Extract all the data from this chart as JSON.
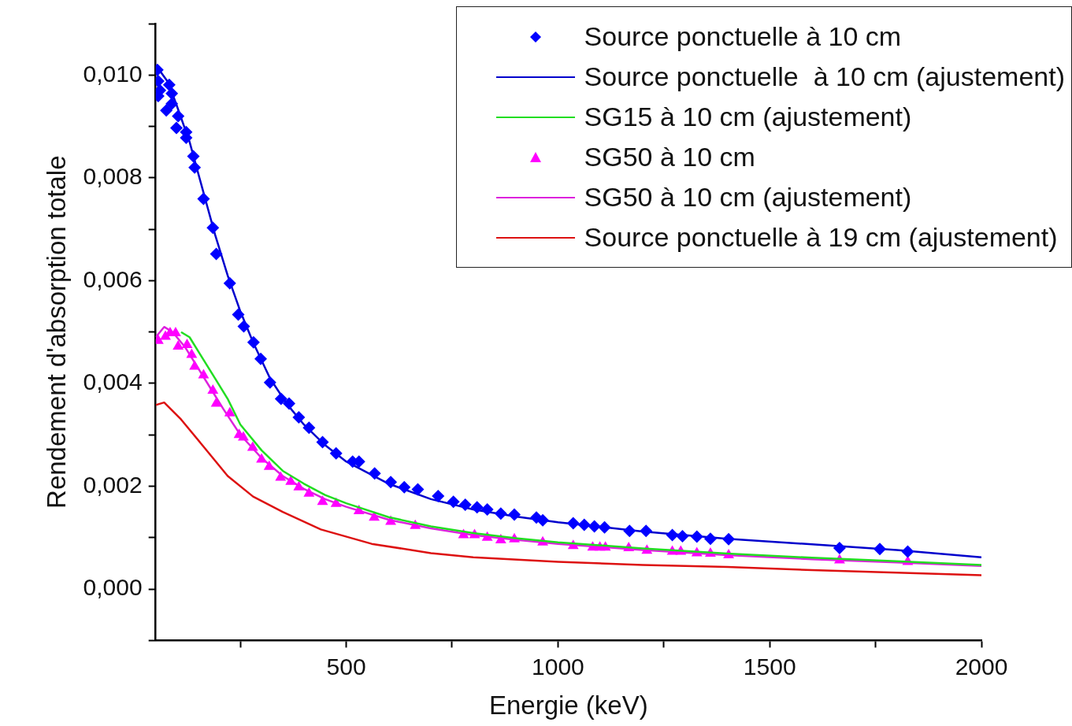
{
  "chart_data": {
    "type": "scatter",
    "xlabel": "Energie (keV)",
    "ylabel": "Rendement d'absorption totale",
    "xlim": [
      50,
      2000
    ],
    "ylim": [
      -0.001,
      0.011
    ],
    "xticks": [
      {
        "value": 250,
        "label": null
      },
      {
        "value": 500,
        "label": "500"
      },
      {
        "value": 750,
        "label": null
      },
      {
        "value": 1000,
        "label": "1000"
      },
      {
        "value": 1250,
        "label": null
      },
      {
        "value": 1500,
        "label": "1500"
      },
      {
        "value": 1750,
        "label": null
      },
      {
        "value": 2000,
        "label": "2000"
      }
    ],
    "yticks": [
      {
        "value": -0.001,
        "label": null
      },
      {
        "value": 0,
        "label": "0,000"
      },
      {
        "value": 0.001,
        "label": null
      },
      {
        "value": 0.002,
        "label": "0,002"
      },
      {
        "value": 0.003,
        "label": null
      },
      {
        "value": 0.004,
        "label": "0,004"
      },
      {
        "value": 0.005,
        "label": null
      },
      {
        "value": 0.006,
        "label": "0,006"
      },
      {
        "value": 0.007,
        "label": null
      },
      {
        "value": 0.008,
        "label": "0,008"
      },
      {
        "value": 0.009,
        "label": null
      },
      {
        "value": 0.01,
        "label": "0,010"
      },
      {
        "value": 0.011,
        "label": null
      }
    ],
    "grid": false,
    "legend": "top right",
    "series": [
      {
        "name": "Source ponctuelle à 10 cm",
        "marker": "diamond",
        "color": "#0000ff",
        "x": [
          54,
          56,
          60,
          56,
          82,
          88,
          75,
          88,
          103,
          99,
          122,
          122,
          139,
          142,
          163,
          185,
          193,
          225,
          245,
          258,
          281,
          298,
          320,
          346,
          365,
          388,
          412,
          444,
          476,
          515,
          530,
          567,
          605,
          637,
          669,
          717,
          753,
          781,
          809,
          833,
          865,
          897,
          949,
          964,
          1036,
          1062,
          1086,
          1110,
          1169,
          1208,
          1270,
          1294,
          1328,
          1360,
          1403,
          1665,
          1760,
          1826
        ],
        "values": [
          0.0101,
          0.00988,
          0.0097,
          0.00959,
          0.00981,
          0.00964,
          0.00931,
          0.00944,
          0.0092,
          0.00897,
          0.00889,
          0.00878,
          0.00842,
          0.0082,
          0.00759,
          0.00703,
          0.00652,
          0.00595,
          0.00534,
          0.00511,
          0.0048,
          0.00448,
          0.00402,
          0.0037,
          0.00361,
          0.00334,
          0.00314,
          0.00286,
          0.00264,
          0.00248,
          0.00248,
          0.00225,
          0.00208,
          0.00198,
          0.00194,
          0.00181,
          0.0017,
          0.00164,
          0.00159,
          0.00155,
          0.00147,
          0.00145,
          0.00139,
          0.00134,
          0.00128,
          0.00125,
          0.00122,
          0.0012,
          0.00113,
          0.00113,
          0.00105,
          0.00103,
          0.00102,
          0.00098,
          0.00097,
          0.0008,
          0.00078,
          0.00073
        ]
      },
      {
        "name": "Source ponctuelle  à 10 cm (ajustement)",
        "type": "line",
        "marker": "none",
        "color": "#0000cc",
        "x": [
          50,
          60,
          80,
          100,
          130,
          160,
          190,
          220,
          250,
          280,
          320,
          360,
          400,
          450,
          500,
          600,
          700,
          800,
          900,
          1000,
          1200,
          1400,
          1600,
          1800,
          2000
        ],
        "values": [
          0.01005,
          0.01008,
          0.00985,
          0.0094,
          0.0087,
          0.0078,
          0.0069,
          0.0061,
          0.0054,
          0.0048,
          0.0041,
          0.0036,
          0.0032,
          0.0028,
          0.00248,
          0.00205,
          0.00175,
          0.00155,
          0.00141,
          0.0013,
          0.00112,
          0.00098,
          0.00087,
          0.00076,
          0.00062
        ]
      },
      {
        "name": "SG15 à 10 cm (ajustement)",
        "type": "line",
        "marker": "none",
        "color": "#22dd22",
        "x": [
          110,
          130,
          160,
          190,
          220,
          250,
          300,
          350,
          400,
          450,
          500,
          600,
          700,
          800,
          900,
          1000,
          1200,
          1400,
          1600,
          1800,
          2000
        ],
        "values": [
          0.005,
          0.0049,
          0.0045,
          0.0041,
          0.0037,
          0.0032,
          0.0027,
          0.0023,
          0.00205,
          0.00183,
          0.00167,
          0.0014,
          0.00122,
          0.00109,
          0.00099,
          0.00091,
          0.00079,
          0.00069,
          0.00061,
          0.00054,
          0.00047
        ]
      },
      {
        "name": "SG50 à 10 cm",
        "marker": "triangle",
        "color": "#ff00ff",
        "x": [
          56,
          73,
          84,
          97,
          103,
          124,
          135,
          142,
          163,
          185,
          193,
          225,
          247,
          257,
          279,
          300,
          318,
          345,
          369,
          388,
          412,
          444,
          476,
          530,
          566,
          605,
          663,
          777,
          803,
          833,
          865,
          897,
          964,
          1036,
          1082,
          1099,
          1112,
          1167,
          1210,
          1270,
          1290,
          1328,
          1360,
          1403,
          1665,
          1826
        ],
        "values": [
          0.00483,
          0.00491,
          0.00498,
          0.00498,
          0.00472,
          0.00475,
          0.00456,
          0.00433,
          0.00416,
          0.00386,
          0.00361,
          0.00342,
          0.003,
          0.00295,
          0.00275,
          0.00252,
          0.00238,
          0.00217,
          0.00209,
          0.00198,
          0.00186,
          0.0017,
          0.00166,
          0.00152,
          0.00139,
          0.00131,
          0.00123,
          0.00105,
          0.00105,
          0.001,
          0.00095,
          0.00097,
          0.00091,
          0.00084,
          0.00081,
          0.00081,
          0.00081,
          0.0008,
          0.00075,
          0.00073,
          0.00073,
          0.0007,
          0.00069,
          0.00066,
          0.00056,
          0.00053
        ]
      },
      {
        "name": "SG50 à 10 cm (ajustement)",
        "type": "line",
        "marker": "none",
        "color": "#dd22dd",
        "x": [
          50,
          70,
          90,
          120,
          150,
          180,
          210,
          250,
          300,
          350,
          400,
          450,
          500,
          600,
          700,
          800,
          900,
          1000,
          1200,
          1400,
          1600,
          1800,
          2000
        ],
        "values": [
          0.0049,
          0.0051,
          0.005,
          0.0047,
          0.0043,
          0.0039,
          0.0035,
          0.003,
          0.00255,
          0.0022,
          0.00195,
          0.00175,
          0.0016,
          0.00135,
          0.00118,
          0.00105,
          0.00096,
          0.00088,
          0.00076,
          0.00066,
          0.00058,
          0.00052,
          0.00045
        ]
      },
      {
        "name": "Source ponctuelle à 19 cm (ajustement)",
        "type": "line",
        "marker": "none",
        "color": "#dd1111",
        "x": [
          50,
          70,
          110,
          160,
          220,
          280,
          350,
          440,
          560,
          700,
          800,
          1000,
          1200,
          1400,
          1600,
          1800,
          2000
        ],
        "values": [
          0.00358,
          0.00363,
          0.0033,
          0.0028,
          0.0022,
          0.0018,
          0.0015,
          0.00116,
          0.00088,
          0.0007,
          0.00062,
          0.00053,
          0.00047,
          0.00043,
          0.00037,
          0.00032,
          0.00027
        ]
      }
    ]
  }
}
